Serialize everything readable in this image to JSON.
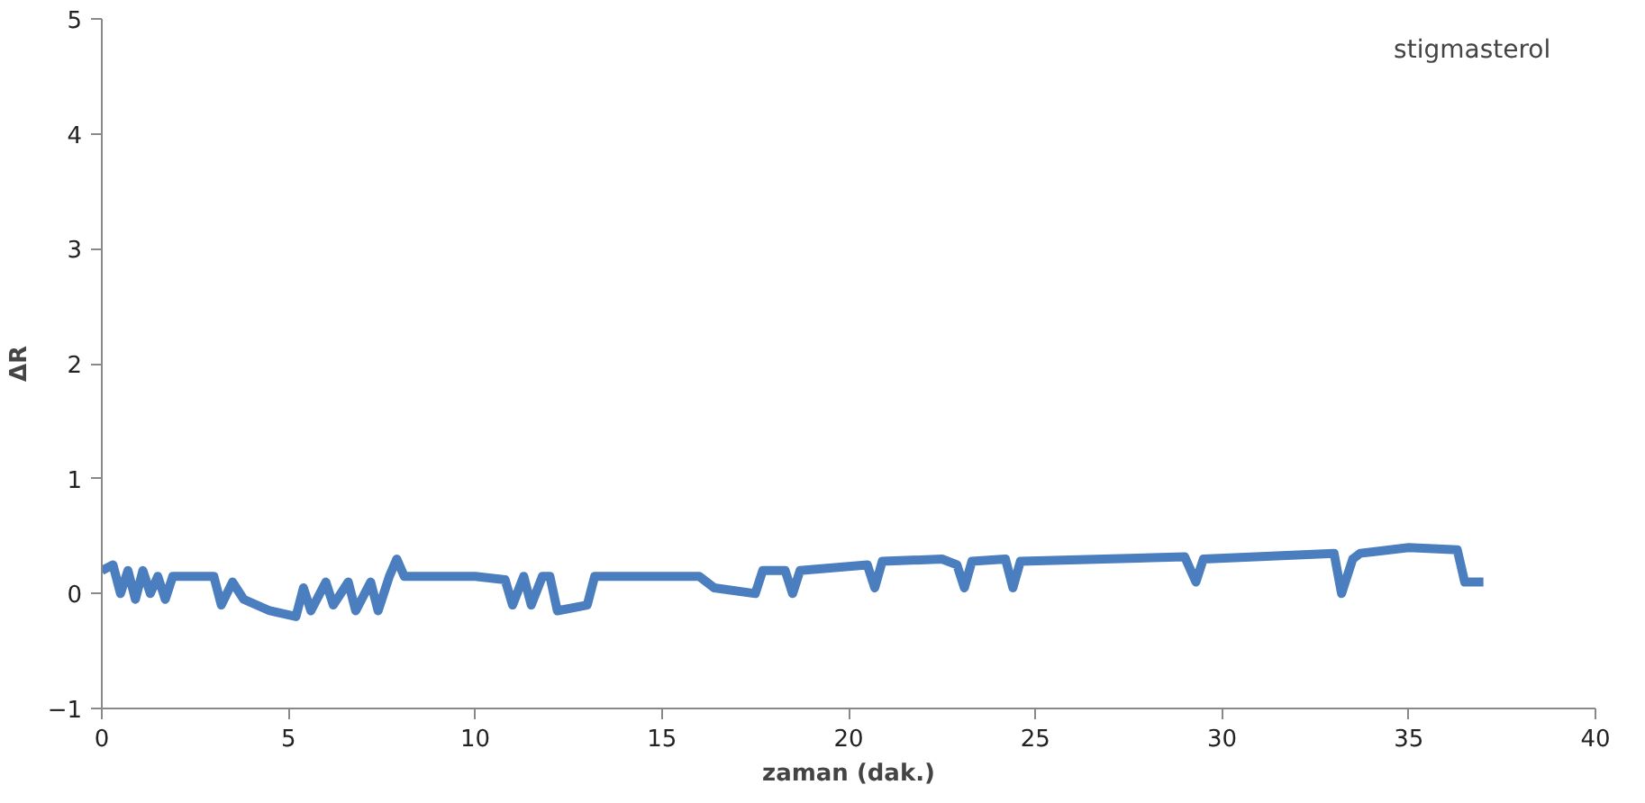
{
  "chart_data": {
    "type": "line",
    "xlabel": "zaman (dak.)",
    "ylabel": "ΔR",
    "annotations": [
      "stigmasterol"
    ],
    "x": [
      0,
      0.3,
      0.5,
      0.7,
      0.9,
      1.1,
      1.3,
      1.5,
      1.7,
      1.9,
      3,
      3.2,
      3.5,
      3.8,
      4.5,
      5.2,
      5.4,
      5.6,
      6,
      6.2,
      6.6,
      6.8,
      7.2,
      7.4,
      7.7,
      7.9,
      8.1,
      10,
      10.8,
      11,
      11.3,
      11.5,
      11.8,
      12,
      12.2,
      13,
      13.2,
      16,
      16.4,
      17.5,
      17.7,
      18.3,
      18.5,
      18.7,
      20.5,
      20.7,
      20.9,
      22.5,
      22.9,
      23.1,
      23.3,
      24.2,
      24.4,
      24.6,
      29,
      29.3,
      29.5,
      33,
      33.2,
      33.5,
      33.7,
      35,
      36.3,
      36.5,
      37
    ],
    "series": [
      {
        "color": "#4a7ebf",
        "values": [
          0.2,
          0.25,
          0.0,
          0.2,
          -0.05,
          0.2,
          0.0,
          0.15,
          -0.05,
          0.15,
          0.15,
          -0.1,
          0.1,
          -0.05,
          -0.15,
          -0.2,
          0.05,
          -0.15,
          0.1,
          -0.1,
          0.1,
          -0.15,
          0.1,
          -0.15,
          0.15,
          0.3,
          0.15,
          0.15,
          0.12,
          -0.1,
          0.15,
          -0.1,
          0.15,
          0.15,
          -0.15,
          -0.1,
          0.15,
          0.15,
          0.05,
          0.0,
          0.2,
          0.2,
          0.0,
          0.2,
          0.25,
          0.05,
          0.28,
          0.3,
          0.25,
          0.05,
          0.28,
          0.3,
          0.05,
          0.28,
          0.32,
          0.1,
          0.3,
          0.35,
          0.0,
          0.3,
          0.35,
          0.4,
          0.38,
          0.1,
          0.1
        ]
      }
    ],
    "xlim": [
      0,
      40
    ],
    "xticks": [
      0,
      5,
      10,
      15,
      20,
      25,
      30,
      35,
      40
    ],
    "ylim": [
      -1,
      5
    ],
    "yticks": [
      -1,
      0,
      1,
      2,
      3,
      4,
      5
    ],
    "grid": false,
    "marker": "none",
    "line_style": "solid"
  }
}
